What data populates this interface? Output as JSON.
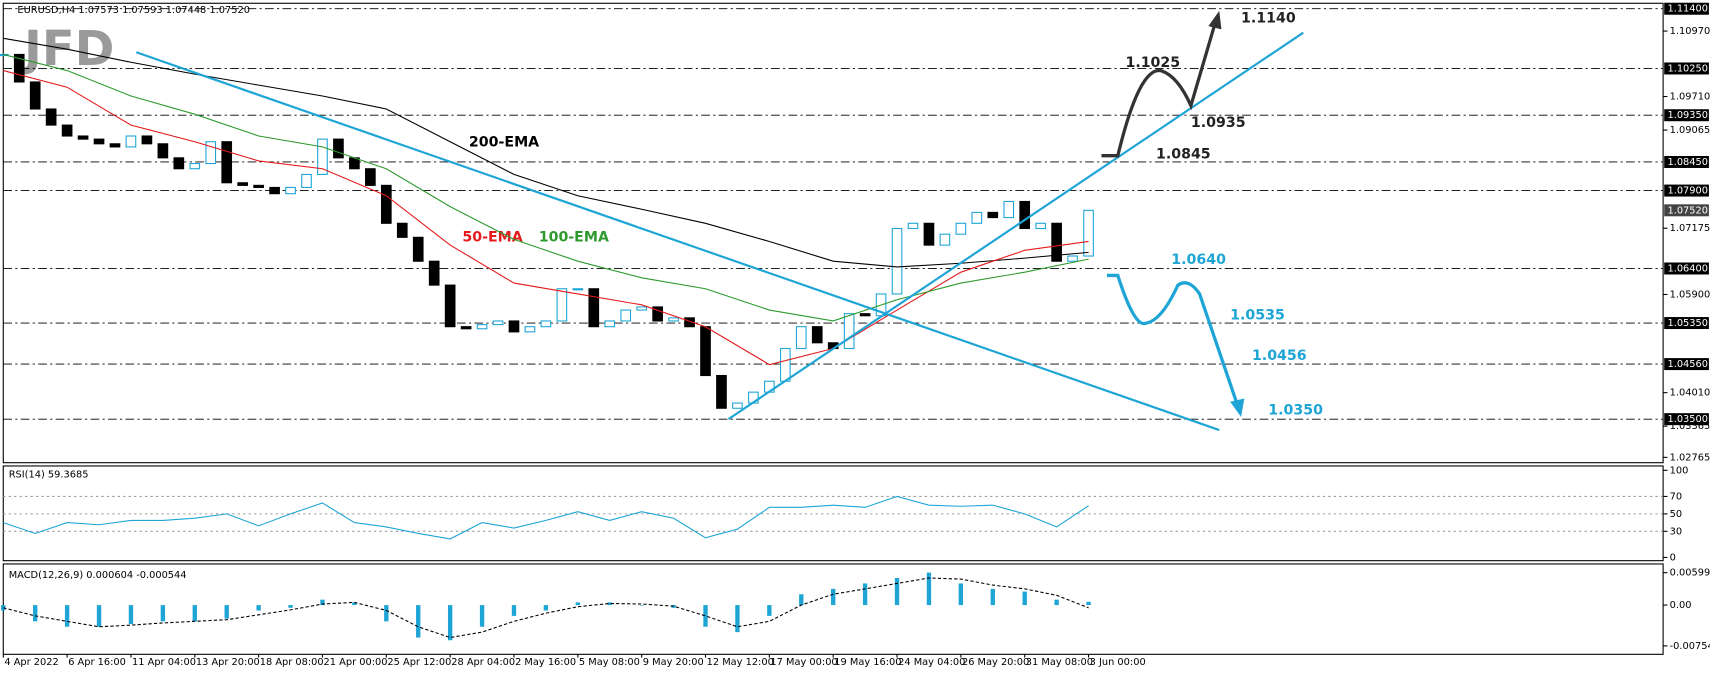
{
  "header": "EURUSD,H4  1.07573 1.07593 1.07448 1.07520",
  "logo": "JFD",
  "chart_data": [
    {
      "type": "candlestick",
      "xlim": [
        0,
        416
      ],
      "ylim": [
        1.02662,
        1.11505
      ],
      "up_color": "#1ea5d6",
      "down_color": "#000000",
      "xticks": [
        {
          "value": 0,
          "label": "4 Apr 2022"
        },
        {
          "value": 16,
          "label": "6 Apr 16:00"
        },
        {
          "value": 32,
          "label": "11 Apr 04:00"
        },
        {
          "value": 48,
          "label": "13 Apr 20:00"
        },
        {
          "value": 64,
          "label": "18 Apr 08:00"
        },
        {
          "value": 80,
          "label": "21 Apr 00:00"
        },
        {
          "value": 96,
          "label": "25 Apr 12:00"
        },
        {
          "value": 112,
          "label": "28 Apr 04:00"
        },
        {
          "value": 128,
          "label": "2 May 16:00"
        },
        {
          "value": 144,
          "label": "5 May 08:00"
        },
        {
          "value": 160,
          "label": "9 May 20:00"
        },
        {
          "value": 176,
          "label": "12 May 12:00"
        },
        {
          "value": 192,
          "label": "17 May 00:00"
        },
        {
          "value": 208,
          "label": "19 May 16:00"
        },
        {
          "value": 224,
          "label": "24 May 04:00"
        },
        {
          "value": 240,
          "label": "26 May 20:00"
        },
        {
          "value": 256,
          "label": "31 May 08:00"
        },
        {
          "value": 272,
          "label": "3 Jun 00:00"
        }
      ],
      "yticks": [
        {
          "value": 1.1097,
          "label": "1.10970"
        },
        {
          "value": 1.0971,
          "label": "1.09710"
        },
        {
          "value": 1.09065,
          "label": "1.09065"
        },
        {
          "value": 1.07175,
          "label": "1.07175"
        },
        {
          "value": 1.059,
          "label": "1.05900"
        },
        {
          "value": 1.0401,
          "label": "1.04010"
        },
        {
          "value": 1.03365,
          "label": "1.03365"
        },
        {
          "value": 1.02765,
          "label": "1.02765"
        }
      ],
      "levels": [
        {
          "value": 1.114,
          "label": "1.11400"
        },
        {
          "value": 1.1025,
          "label": "1.10250"
        },
        {
          "value": 1.0935,
          "label": "1.09350"
        },
        {
          "value": 1.0845,
          "label": "1.08450"
        },
        {
          "value": 1.079,
          "label": "1.07900"
        },
        {
          "value": 1.064,
          "label": "1.06400"
        },
        {
          "value": 1.0535,
          "label": "1.05350"
        },
        {
          "value": 1.0456,
          "label": "1.04560"
        },
        {
          "value": 1.035,
          "label": "1.03500"
        }
      ],
      "last": {
        "value": 1.0752,
        "label": "1.07520"
      },
      "x": [
        0,
        4,
        8,
        12,
        16,
        20,
        24,
        28,
        32,
        36,
        40,
        44,
        48,
        52,
        56,
        60,
        64,
        68,
        72,
        76,
        80,
        84,
        88,
        92,
        96,
        100,
        104,
        108,
        112,
        116,
        120,
        124,
        128,
        132,
        136,
        140,
        144,
        148,
        152,
        156,
        160,
        164,
        168,
        172,
        176,
        180,
        184,
        188,
        192,
        196,
        200,
        204,
        208,
        212,
        216,
        220,
        224,
        228,
        232,
        236,
        240,
        244,
        248,
        252,
        256,
        260,
        264,
        268,
        272
      ],
      "close": [
        1.1052,
        1.0999,
        1.0947,
        1.0916,
        1.0895,
        1.0889,
        1.088,
        1.0874,
        1.0895,
        1.088,
        1.0853,
        1.0832,
        1.0842,
        1.0884,
        1.0805,
        1.08,
        1.0796,
        1.0784,
        1.0796,
        1.0821,
        1.0889,
        1.0853,
        1.0832,
        1.08,
        1.0727,
        1.07,
        1.0654,
        1.0608,
        1.0528,
        1.0524,
        1.0532,
        1.0539,
        1.0518,
        1.0528,
        1.0539,
        1.0601,
        1.0601,
        1.0528,
        1.0539,
        1.056,
        1.0566,
        1.0539,
        1.0545,
        1.0528,
        1.0434,
        1.0371,
        1.0381,
        1.0402,
        1.0423,
        1.0486,
        1.0528,
        1.0497,
        1.0486,
        1.0553,
        1.0549,
        1.0591,
        1.0717,
        1.0727,
        1.0685,
        1.0706,
        1.0727,
        1.0748,
        1.0738,
        1.0769,
        1.0717,
        1.0727,
        1.0654,
        1.0664,
        1.0752
      ],
      "series": [
        {
          "name": "200-EMA",
          "color": "#000000",
          "x": [
            0,
            16,
            32,
            48,
            64,
            80,
            96,
            112,
            128,
            144,
            160,
            176,
            192,
            208,
            224,
            240,
            256,
            272
          ],
          "values": [
            1.1083,
            1.1062,
            1.1037,
            1.1014,
            1.0993,
            1.0972,
            1.0947,
            1.0884,
            1.0821,
            1.078,
            1.0754,
            1.0727,
            1.0692,
            1.0654,
            1.0643,
            1.065,
            1.066,
            1.0671
          ]
        },
        {
          "name": "50-EMA",
          "color": "#e41a1c",
          "x": [
            0,
            16,
            32,
            48,
            64,
            80,
            96,
            112,
            128,
            144,
            160,
            176,
            192,
            208,
            224,
            240,
            256,
            272
          ],
          "values": [
            1.1021,
            1.0989,
            1.0916,
            1.0884,
            1.0847,
            1.0832,
            1.078,
            1.0685,
            1.0612,
            1.0591,
            1.057,
            1.0528,
            1.0455,
            1.0486,
            1.056,
            1.0633,
            1.0675,
            1.0692
          ]
        },
        {
          "name": "100-EMA",
          "color": "#2e9a2e",
          "x": [
            0,
            16,
            32,
            48,
            64,
            80,
            96,
            112,
            128,
            144,
            160,
            176,
            192,
            208,
            224,
            240,
            256,
            272
          ],
          "values": [
            1.1052,
            1.1021,
            1.0972,
            1.0937,
            1.0895,
            1.0874,
            1.0832,
            1.0759,
            1.0696,
            1.0654,
            1.0622,
            1.0601,
            1.056,
            1.0539,
            1.058,
            1.0612,
            1.0633,
            1.0658
          ]
        }
      ],
      "annotations": [
        {
          "text": "1.1140",
          "color": "#222222"
        },
        {
          "text": "1.1025",
          "color": "#222222"
        },
        {
          "text": "1.0935",
          "color": "#222222"
        },
        {
          "text": "1.0845",
          "color": "#222222"
        },
        {
          "text": "1.0640",
          "color": "#1ea5d6"
        },
        {
          "text": "1.0535",
          "color": "#1ea5d6"
        },
        {
          "text": "1.0456",
          "color": "#1ea5d6"
        },
        {
          "text": "1.0350",
          "color": "#1ea5d6"
        }
      ]
    },
    {
      "type": "line",
      "title": "RSI(14) 59.3685",
      "color": "#1ea5d6",
      "xlim": [
        0,
        416
      ],
      "ylim": [
        0,
        100
      ],
      "yticks": [
        0,
        30,
        50,
        70,
        100
      ],
      "x": [
        0,
        8,
        16,
        24,
        32,
        40,
        48,
        56,
        64,
        72,
        80,
        88,
        96,
        104,
        112,
        120,
        128,
        136,
        144,
        152,
        160,
        168,
        176,
        184,
        192,
        200,
        208,
        216,
        224,
        232,
        240,
        248,
        256,
        264,
        272
      ],
      "values": [
        40,
        27.5,
        40,
        37.5,
        42.5,
        42.5,
        45,
        50,
        36.3,
        50,
        62.5,
        40,
        35,
        27.5,
        21.3,
        40,
        33.8,
        42.5,
        52.5,
        42.5,
        52.5,
        45,
        22.5,
        32.5,
        57.5,
        57.5,
        60,
        57.5,
        70,
        60,
        58.8,
        60,
        50,
        35,
        59.4
      ]
    },
    {
      "type": "macd",
      "title": "MACD(12,26,9) 0.000604 -0.000544",
      "color": "#1ea5d6",
      "signal_color": "#000000",
      "xlim": [
        0,
        416
      ],
      "ylim": [
        -0.0089,
        0.0072
      ],
      "yticks": [
        {
          "value": 0.00599,
          "label": "0.00599"
        },
        {
          "value": 0,
          "label": "0.00"
        },
        {
          "value": -0.007541,
          "label": "-0.007541"
        }
      ],
      "x": [
        0,
        8,
        16,
        24,
        32,
        40,
        48,
        56,
        64,
        72,
        80,
        88,
        96,
        104,
        112,
        120,
        128,
        136,
        144,
        152,
        160,
        168,
        176,
        184,
        192,
        200,
        208,
        216,
        224,
        232,
        240,
        248,
        256,
        264,
        272
      ],
      "histogram": [
        -0.001,
        -0.003,
        -0.004,
        -0.004,
        -0.0035,
        -0.003,
        -0.003,
        -0.0025,
        -0.001,
        -0.0005,
        0.001,
        0.0005,
        -0.003,
        -0.006,
        -0.0065,
        -0.004,
        -0.002,
        -0.001,
        0.0005,
        0.0005,
        0,
        -0.0005,
        -0.004,
        -0.005,
        -0.002,
        0.002,
        0.003,
        0.004,
        0.005,
        0.006,
        0.004,
        0.003,
        0.0025,
        0.001,
        0.0006
      ],
      "signal": [
        -0.0005,
        -0.002,
        -0.003,
        -0.004,
        -0.0037,
        -0.0033,
        -0.003,
        -0.0027,
        -0.0018,
        -0.0009,
        0.0002,
        0.0005,
        -0.001,
        -0.004,
        -0.006,
        -0.005,
        -0.003,
        -0.0015,
        -0.0003,
        0.0003,
        0.0002,
        -0.0002,
        -0.002,
        -0.004,
        -0.003,
        0,
        0.002,
        0.003,
        0.004,
        0.005,
        0.0048,
        0.0037,
        0.003,
        0.0018,
        -0.0005
      ]
    }
  ]
}
